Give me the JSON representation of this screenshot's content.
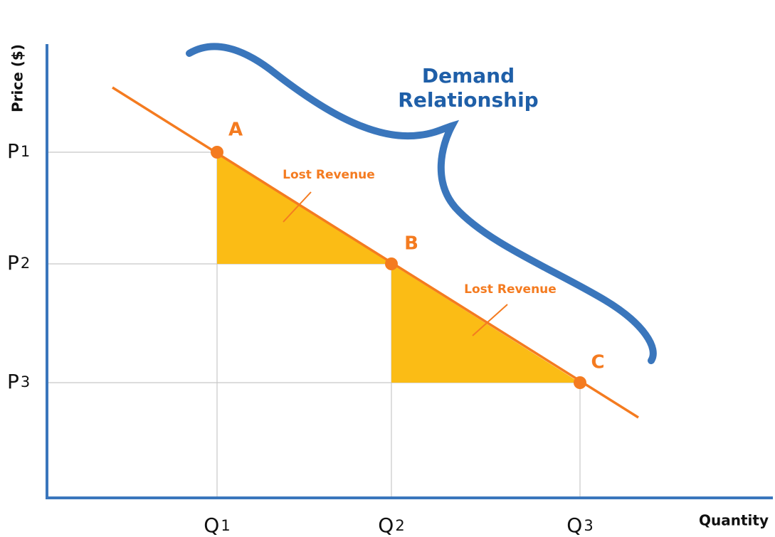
{
  "axes": {
    "y_label": "Price ($)",
    "x_label": "Quantity"
  },
  "price_levels": [
    {
      "letter": "P",
      "index": "1"
    },
    {
      "letter": "P",
      "index": "2"
    },
    {
      "letter": "P",
      "index": "3"
    }
  ],
  "quantity_levels": [
    {
      "letter": "Q",
      "index": "1"
    },
    {
      "letter": "Q",
      "index": "2"
    },
    {
      "letter": "Q",
      "index": "3"
    }
  ],
  "points": [
    "A",
    "B",
    "C"
  ],
  "areas": [
    "Lost Revenue",
    "Lost Revenue"
  ],
  "curve_label": [
    "Demand",
    "Relationship"
  ]
}
